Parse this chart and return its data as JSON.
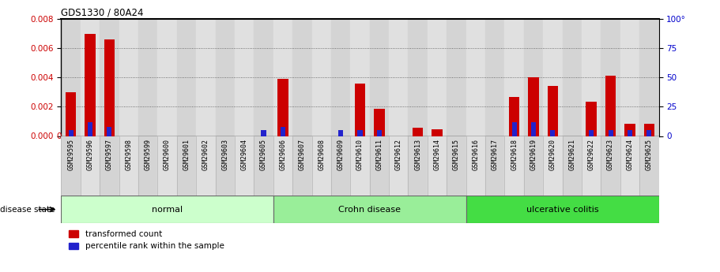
{
  "title": "GDS1330 / 80A24",
  "samples": [
    "GSM29595",
    "GSM29596",
    "GSM29597",
    "GSM29598",
    "GSM29599",
    "GSM29600",
    "GSM29601",
    "GSM29602",
    "GSM29603",
    "GSM29604",
    "GSM29605",
    "GSM29606",
    "GSM29607",
    "GSM29608",
    "GSM29609",
    "GSM29610",
    "GSM29611",
    "GSM29612",
    "GSM29613",
    "GSM29614",
    "GSM29615",
    "GSM29616",
    "GSM29617",
    "GSM29618",
    "GSM29619",
    "GSM29620",
    "GSM29621",
    "GSM29622",
    "GSM29623",
    "GSM29624",
    "GSM29625"
  ],
  "transformed_count": [
    0.003,
    0.007,
    0.0066,
    0.0,
    0.0,
    0.0,
    0.0,
    0.0,
    0.0,
    0.0,
    0.0,
    0.0039,
    0.0,
    0.0,
    0.0,
    0.0036,
    0.00185,
    0.0,
    0.00055,
    0.00045,
    0.0,
    0.0,
    0.0,
    0.00265,
    0.004,
    0.0034,
    0.0,
    0.00235,
    0.0041,
    0.00085,
    0.00085
  ],
  "percentile_rank_pct": [
    5,
    12,
    8,
    0,
    0,
    0,
    0,
    0,
    0,
    0,
    5,
    8,
    0,
    0,
    5,
    5,
    5,
    0,
    0,
    0,
    0,
    0,
    0,
    12,
    12,
    5,
    0,
    5,
    5,
    5,
    5
  ],
  "groups": [
    {
      "label": "normal",
      "start": 0,
      "end": 10,
      "color": "#ccffcc"
    },
    {
      "label": "Crohn disease",
      "start": 11,
      "end": 20,
      "color": "#99ee99"
    },
    {
      "label": "ulcerative colitis",
      "start": 21,
      "end": 30,
      "color": "#44dd44"
    }
  ],
  "bar_color_red": "#cc0000",
  "bar_color_blue": "#2222cc",
  "ylim_left": [
    0,
    0.008
  ],
  "ylim_right": [
    0,
    100
  ],
  "yticks_left": [
    0,
    0.002,
    0.004,
    0.006,
    0.008
  ],
  "yticks_right": [
    0,
    25,
    50,
    75,
    100
  ],
  "ytick_right_labels": [
    "0",
    "25",
    "50",
    "75",
    "100°"
  ],
  "grid_color": "#555555",
  "plot_bg": "#e8e8e8",
  "col_bg_even": "#d4d4d4",
  "col_bg_odd": "#e0e0e0",
  "disease_state_label": "disease state",
  "legend_items": [
    "transformed count",
    "percentile rank within the sample"
  ],
  "red_bar_width": 0.55,
  "blue_bar_width": 0.25
}
